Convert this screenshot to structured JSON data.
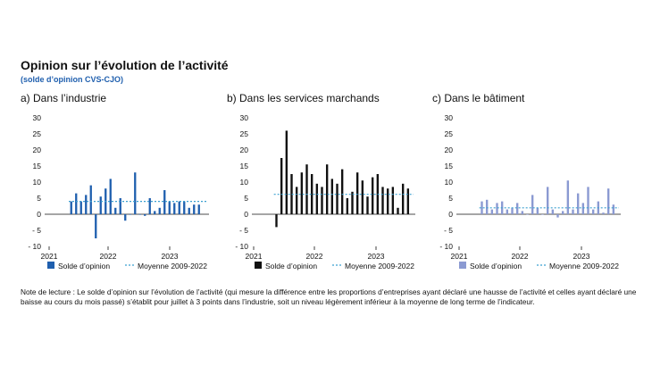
{
  "title": "Opinion sur l’évolution de l’activité",
  "subtitle": "(solde d’opinion CVS-CJO)",
  "note": "Note de lecture : Le solde d’opinion sur l’évolution de l’activité (qui mesure la différence entre les proportions d’entreprises ayant déclaré une hausse de l’activité et celles ayant déclaré une baisse au cours du mois passé) s’établit pour juillet à 3 points dans l’industrie, soit un niveau légèrement inférieur à la moyenne de long terme de l’indicateur.",
  "colors": {
    "mean_line": "#3aa0d0"
  },
  "chart_data": [
    {
      "type": "bar",
      "panel_label": "a)  Dans l’industrie",
      "color": "#1f5fae",
      "x_tick_labels": [
        "2021",
        "2022",
        "2023"
      ],
      "y_ticks": [
        30,
        25,
        20,
        15,
        10,
        5,
        0,
        -5,
        -10
      ],
      "y_tick_labels": [
        "30",
        "25",
        "20",
        "15",
        "10",
        "5",
        "0",
        "- 5",
        "- 10"
      ],
      "ylim": [
        -10,
        30
      ],
      "first_month": "2021-05",
      "values": [
        4,
        6.5,
        4,
        6,
        9,
        -7.5,
        5.5,
        8,
        11,
        2,
        5,
        -2,
        0,
        13,
        0,
        -0.5,
        5,
        1,
        2,
        7.5,
        4,
        3.5,
        4,
        4,
        2,
        3,
        3
      ],
      "mean": 4,
      "legend_series": "Solde d’opinion",
      "legend_mean": "Moyenne 2009-2022"
    },
    {
      "type": "bar",
      "panel_label": "b)  Dans les services marchands",
      "color": "#111111",
      "x_tick_labels": [
        "2021",
        "2022",
        "2023"
      ],
      "y_ticks": [
        30,
        25,
        20,
        15,
        10,
        5,
        0,
        -5,
        -10
      ],
      "y_tick_labels": [
        "30",
        "25",
        "20",
        "15",
        "10",
        "5",
        "0",
        "- 5",
        "- 10"
      ],
      "ylim": [
        -10,
        30
      ],
      "first_month": "2021-05",
      "values": [
        -4,
        17.5,
        26,
        12.5,
        8.5,
        13,
        15.5,
        12.5,
        9.5,
        8.5,
        15.5,
        11,
        9.5,
        14,
        5,
        7,
        13,
        10.5,
        5.5,
        11.5,
        12.5,
        8.5,
        8,
        8.5,
        2,
        9.5,
        8
      ],
      "mean": 6.2,
      "legend_series": "Solde d’opinion",
      "legend_mean": "Moyenne 2009-2022"
    },
    {
      "type": "bar",
      "panel_label": "c)  Dans le bâtiment",
      "color": "#8b9ad2",
      "x_tick_labels": [
        "2021",
        "2022",
        "2023"
      ],
      "y_ticks": [
        30,
        25,
        20,
        15,
        10,
        5,
        0,
        -5,
        -10
      ],
      "y_tick_labels": [
        "30",
        "25",
        "20",
        "15",
        "10",
        "5",
        "0",
        "- 5",
        "- 10"
      ],
      "ylim": [
        -10,
        30
      ],
      "first_month": "2021-05",
      "values": [
        4,
        4.5,
        1.5,
        3.5,
        4,
        1.5,
        2,
        3.5,
        1,
        0,
        6,
        2,
        0,
        8.5,
        1.5,
        -1,
        1,
        10.5,
        1.5,
        6.5,
        3.5,
        8.5,
        1.5,
        4,
        0.5,
        8,
        3
      ],
      "mean": 2,
      "legend_series": "Solde d’opinion",
      "legend_mean": "Moyenne 2009-2022"
    }
  ]
}
